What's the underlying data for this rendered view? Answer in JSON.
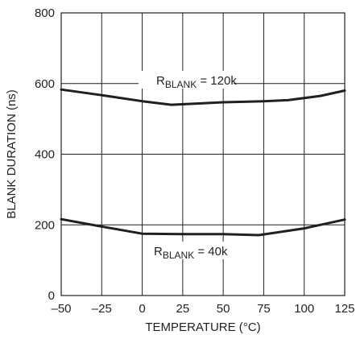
{
  "chart_data": {
    "type": "line",
    "xlabel": "TEMPERATURE (°C)",
    "ylabel": "BLANK DURATION (ns)",
    "xlim": [
      -50,
      125
    ],
    "ylim": [
      0,
      800
    ],
    "x_ticks": [
      -50,
      -25,
      0,
      25,
      50,
      75,
      100,
      125
    ],
    "x_tick_labels": [
      "–50",
      "–25",
      "0",
      "25",
      "50",
      "75",
      "100",
      "125"
    ],
    "y_ticks": [
      0,
      200,
      400,
      600,
      800
    ],
    "y_tick_labels": [
      "0",
      "200",
      "400",
      "600",
      "800"
    ],
    "grid": true,
    "series": [
      {
        "label_main": "R",
        "label_sub": "BLANK",
        "label_value": " = 120k",
        "x": [
          -50,
          -25,
          0,
          18,
          50,
          75,
          90,
          110,
          125
        ],
        "values": [
          583,
          567,
          550,
          540,
          547,
          550,
          553,
          565,
          580
        ]
      },
      {
        "label_main": "R",
        "label_sub": "BLANK",
        "label_value": " = 40k",
        "x": [
          -50,
          -25,
          0,
          25,
          50,
          72,
          100,
          125
        ],
        "values": [
          216,
          195,
          175,
          174,
          174,
          171,
          190,
          215
        ]
      }
    ]
  }
}
